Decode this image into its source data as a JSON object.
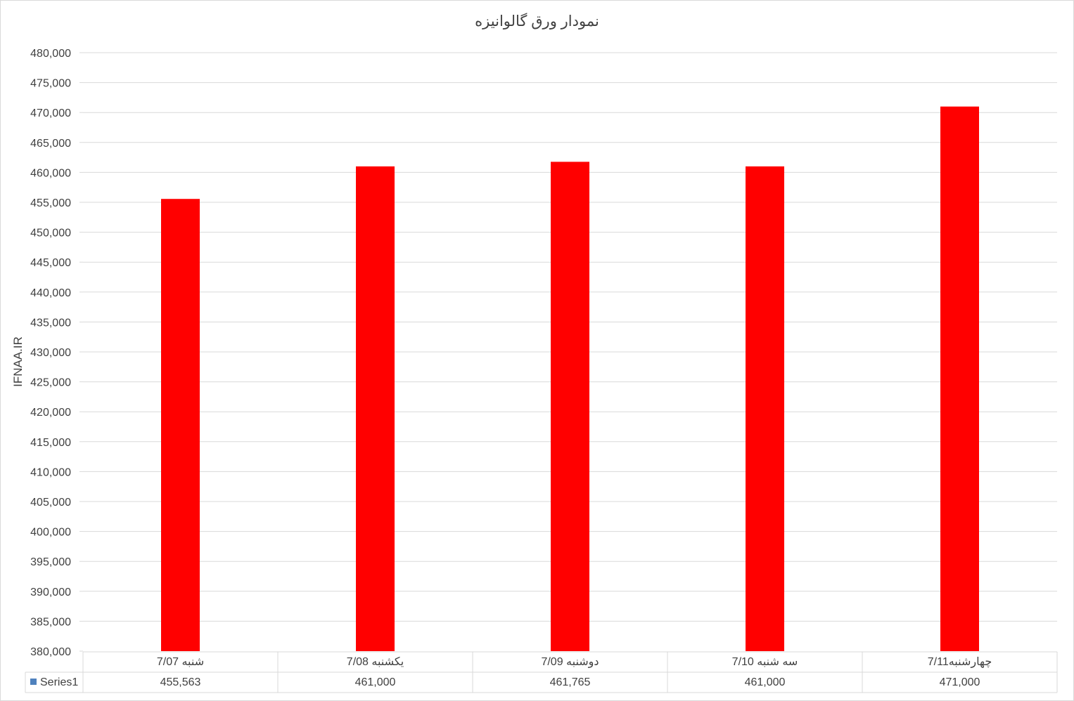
{
  "chart_data": {
    "type": "bar",
    "title": "نمودار ورق گالوانیزه",
    "ylabel": "IFNAA.IR",
    "xlabel": "",
    "categories": [
      "شنبه 7/07",
      "یکشنبه 7/08",
      "دوشنبه 7/09",
      "سه شنبه 7/10",
      "چهارشنبه7/11"
    ],
    "series": [
      {
        "name": "Series1",
        "values": [
          455563,
          461000,
          461765,
          461000,
          471000
        ],
        "color": "#ff0000",
        "legend_color": "#4f81bd"
      }
    ],
    "value_labels": [
      "455,563",
      "461,000",
      "461,765",
      "461,000",
      "471,000"
    ],
    "ylim": [
      380000,
      480000
    ],
    "ytick_step": 5000,
    "grid": true,
    "legend": "data-table"
  }
}
